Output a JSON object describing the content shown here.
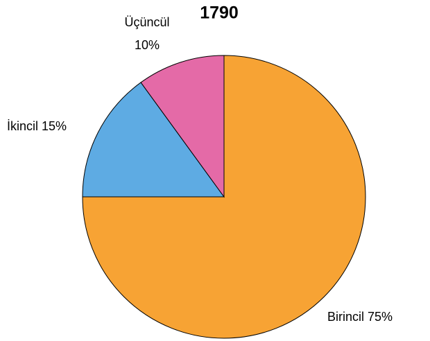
{
  "chart_data": {
    "type": "pie",
    "title": "1790",
    "categories": [
      "Birincil",
      "İkincil",
      "Üçüncül"
    ],
    "values": [
      75,
      15,
      10
    ],
    "value_labels": [
      "75%",
      "15%",
      "10%"
    ],
    "colors": [
      "#f7a334",
      "#5eabe3",
      "#e46aa7"
    ]
  }
}
